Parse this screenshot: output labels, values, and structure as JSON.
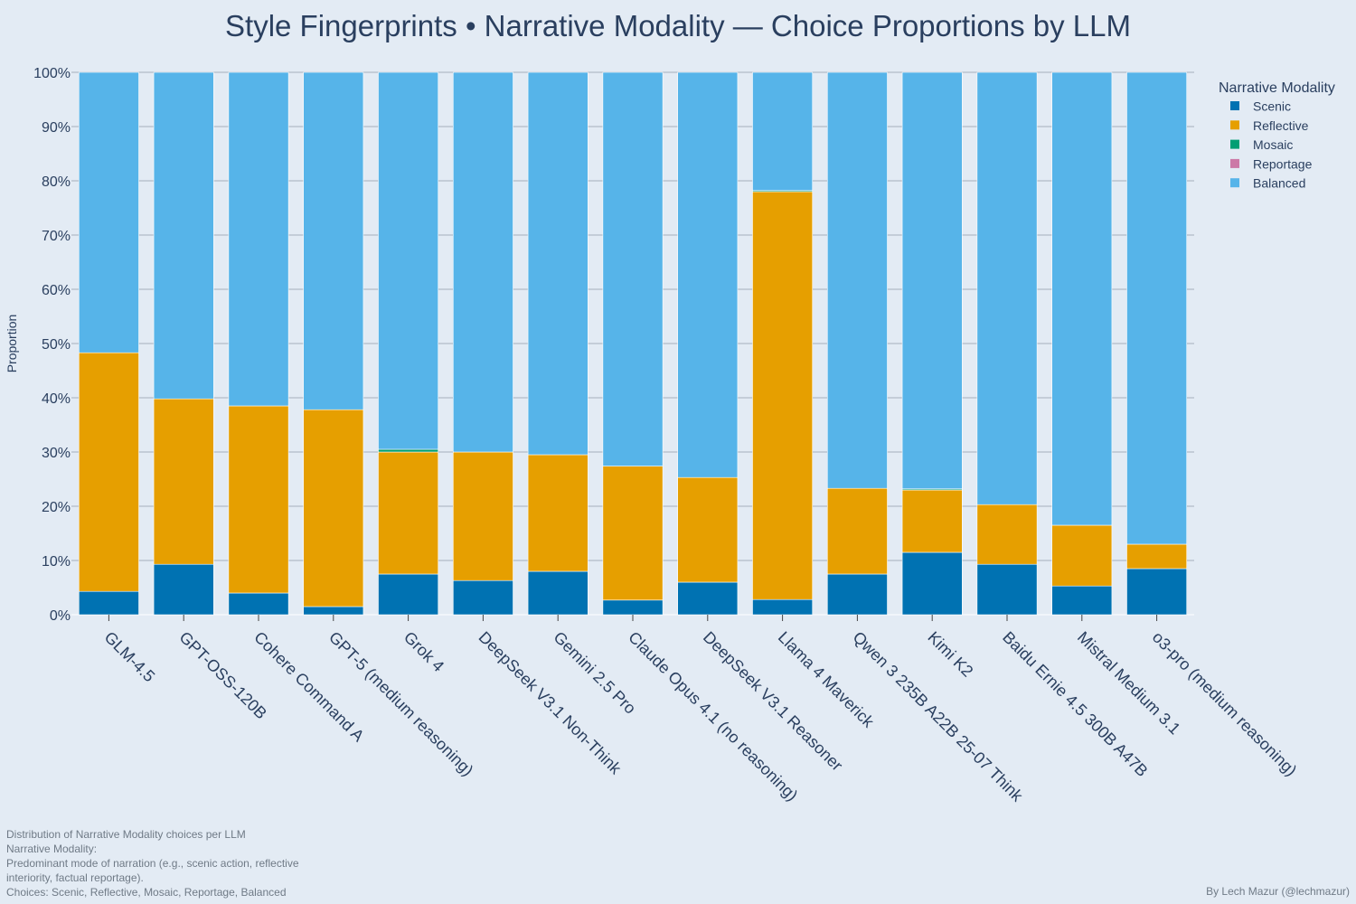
{
  "chart_data": {
    "type": "bar",
    "stacked": true,
    "title": "Style Fingerprints • Narrative Modality — Choice Proportions by LLM",
    "ylabel": "Proportion",
    "ylim": [
      0,
      1
    ],
    "yticks": [
      "0%",
      "10%",
      "20%",
      "30%",
      "40%",
      "50%",
      "60%",
      "70%",
      "80%",
      "90%",
      "100%"
    ],
    "grid": true,
    "legend_title": "Narrative Modality",
    "legend_position": "top-right",
    "categories": [
      "GLM-4.5",
      "GPT-OSS-120B",
      "Cohere Command A",
      "GPT-5 (medium reasoning)",
      "Grok 4",
      "DeepSeek V3.1 Non-Think",
      "Gemini 2.5 Pro",
      "Claude Opus 4.1 (no reasoning)",
      "DeepSeek V3.1 Reasoner",
      "Llama 4 Maverick",
      "Qwen 3 235B A22B 25-07 Think",
      "Kimi K2",
      "Baidu Ernie 4.5 300B A47B",
      "Mistral Medium 3.1",
      "o3-pro (medium reasoning)"
    ],
    "series": [
      {
        "name": "Scenic",
        "color": "#0072b2",
        "values": [
          0.043,
          0.093,
          0.04,
          0.015,
          0.075,
          0.063,
          0.08,
          0.027,
          0.06,
          0.028,
          0.075,
          0.115,
          0.093,
          0.053,
          0.085
        ]
      },
      {
        "name": "Reflective",
        "color": "#e69f00",
        "values": [
          0.44,
          0.305,
          0.345,
          0.363,
          0.225,
          0.237,
          0.215,
          0.247,
          0.193,
          0.752,
          0.158,
          0.115,
          0.11,
          0.112,
          0.045
        ]
      },
      {
        "name": "Mosaic",
        "color": "#009e73",
        "values": [
          0,
          0,
          0,
          0,
          0.005,
          0,
          0,
          0,
          0,
          0.002,
          0,
          0.002,
          0,
          0,
          0
        ]
      },
      {
        "name": "Reportage",
        "color": "#cc79a7",
        "values": [
          0,
          0,
          0,
          0,
          0,
          0,
          0,
          0,
          0,
          0,
          0,
          0,
          0,
          0,
          0
        ]
      },
      {
        "name": "Balanced",
        "color": "#56b4e9",
        "values": [
          0.517,
          0.602,
          0.615,
          0.622,
          0.695,
          0.7,
          0.705,
          0.726,
          0.747,
          0.218,
          0.767,
          0.768,
          0.797,
          0.835,
          0.87
        ]
      }
    ]
  },
  "footnote": {
    "line1": "Distribution of Narrative Modality choices per LLM",
    "line2": "Narrative Modality:",
    "line3": "Predominant mode of narration (e.g., scenic action, reflective interiority, factual reportage).",
    "line4": "Choices: Scenic, Reflective, Mosaic, Reportage, Balanced"
  },
  "credit": "By Lech Mazur (@lechmazur)"
}
